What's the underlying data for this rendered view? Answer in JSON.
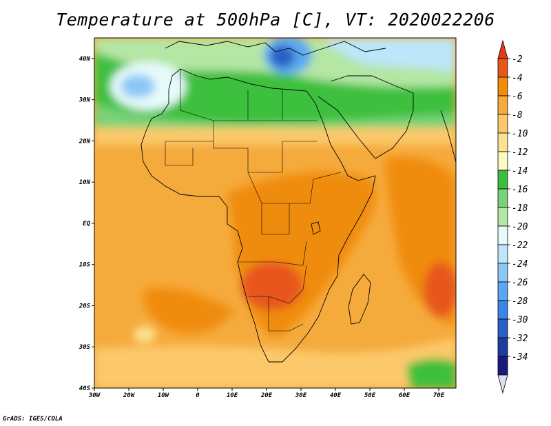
{
  "title": "Temperature at 500hPa [C], VT: 2020022206",
  "credit": "GrADS: IGES/COLA",
  "map": {
    "lon_range": [
      -30,
      75
    ],
    "lat_range": [
      -40,
      45
    ],
    "lat_labels": [
      {
        "lat": 40,
        "text": "40N"
      },
      {
        "lat": 30,
        "text": "30N"
      },
      {
        "lat": 20,
        "text": "20N"
      },
      {
        "lat": 10,
        "text": "10N"
      },
      {
        "lat": 0,
        "text": "EQ"
      },
      {
        "lat": -10,
        "text": "10S"
      },
      {
        "lat": -20,
        "text": "20S"
      },
      {
        "lat": -30,
        "text": "30S"
      },
      {
        "lat": -40,
        "text": "40S"
      }
    ],
    "lon_labels": [
      {
        "lon": -30,
        "text": "30W"
      },
      {
        "lon": -20,
        "text": "20W"
      },
      {
        "lon": -10,
        "text": "10W"
      },
      {
        "lon": 0,
        "text": "0"
      },
      {
        "lon": 10,
        "text": "10E"
      },
      {
        "lon": 20,
        "text": "20E"
      },
      {
        "lon": 30,
        "text": "30E"
      },
      {
        "lon": 40,
        "text": "40E"
      },
      {
        "lon": 50,
        "text": "50E"
      },
      {
        "lon": 60,
        "text": "60E"
      },
      {
        "lon": 70,
        "text": "70E"
      }
    ]
  },
  "colorbar": {
    "levels": [
      "-2",
      "-4",
      "-6",
      "-8",
      "-10",
      "-12",
      "-14",
      "-16",
      "-18",
      "-20",
      "-22",
      "-24",
      "-26",
      "-28",
      "-30",
      "-32",
      "-34"
    ],
    "colors": [
      "#e8571a",
      "#f08c0a",
      "#f5aa3c",
      "#fbc96a",
      "#fbe290",
      "#fbf8c0",
      "#3cc03c",
      "#78d278",
      "#b4e6a4",
      "#e6fafa",
      "#bce6fa",
      "#8cc8f5",
      "#5ca8f0",
      "#3c84e6",
      "#2860c8",
      "#1e3ca0",
      "#1a1a7a"
    ],
    "top_color": "#e83c10",
    "bottom_color": "#dcdcf5"
  }
}
